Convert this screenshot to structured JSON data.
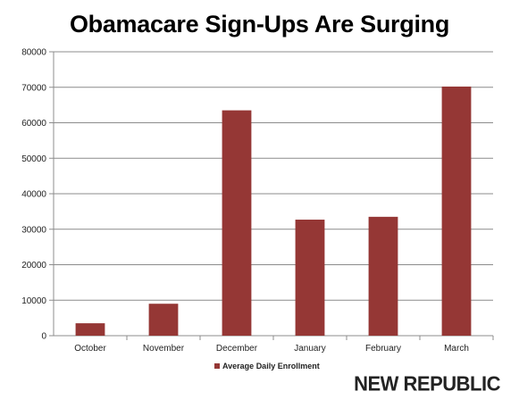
{
  "title": "Obamacare Sign-Ups Are Surging",
  "brand": "NEW REPUBLIC",
  "chart_data": {
    "type": "bar",
    "categories": [
      "October",
      "November",
      "December",
      "January",
      "February",
      "March"
    ],
    "series": [
      {
        "name": "Average Daily Enrollment",
        "values": [
          3500,
          9000,
          63500,
          32700,
          33500,
          70200
        ],
        "color": "#953735"
      }
    ],
    "ylim": [
      0,
      80000
    ],
    "yticks": [
      0,
      10000,
      20000,
      30000,
      40000,
      50000,
      60000,
      70000,
      80000
    ],
    "grid": true,
    "legend": "bottom"
  }
}
